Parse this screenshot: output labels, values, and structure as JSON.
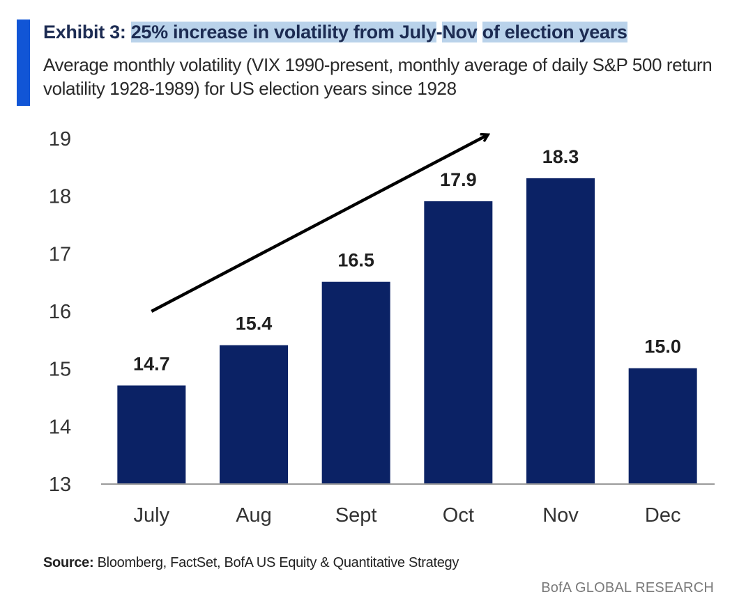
{
  "header": {
    "accent_color": "#1155d6",
    "title_prefix": "Exhibit 3: ",
    "title_highlight_1": "25% increase in volatility from July",
    "title_dash": "-",
    "title_highlight_2": "Nov",
    "title_space": " ",
    "title_highlight_3": "of election years",
    "subtitle": "Average monthly volatility (VIX 1990-present, monthly average of daily S&P 500 return volatility 1928-1989) for US election years since 1928"
  },
  "chart_data": {
    "type": "bar",
    "title": "25% increase in volatility from July-Nov of election years",
    "xlabel": "",
    "ylabel": "",
    "categories": [
      "July",
      "Aug",
      "Sept",
      "Oct",
      "Nov",
      "Dec"
    ],
    "values": [
      14.7,
      15.4,
      16.5,
      17.9,
      18.3,
      15.0
    ],
    "value_labels": [
      "14.7",
      "15.4",
      "16.5",
      "17.9",
      "18.3",
      "15.0"
    ],
    "ylim": [
      13,
      19
    ],
    "yticks": [
      "13",
      "14",
      "15",
      "16",
      "17",
      "18",
      "19"
    ],
    "grid": false,
    "bar_color": "#0b2265",
    "annotations": [
      {
        "type": "trend-arrow",
        "from_category": "July",
        "to_category": "Nov",
        "direction": "up"
      }
    ]
  },
  "footer": {
    "source_label": "Source:",
    "source_text": " Bloomberg, FactSet, BofA US Equity & Quantitative Strategy",
    "brand": "BofA GLOBAL RESEARCH"
  }
}
